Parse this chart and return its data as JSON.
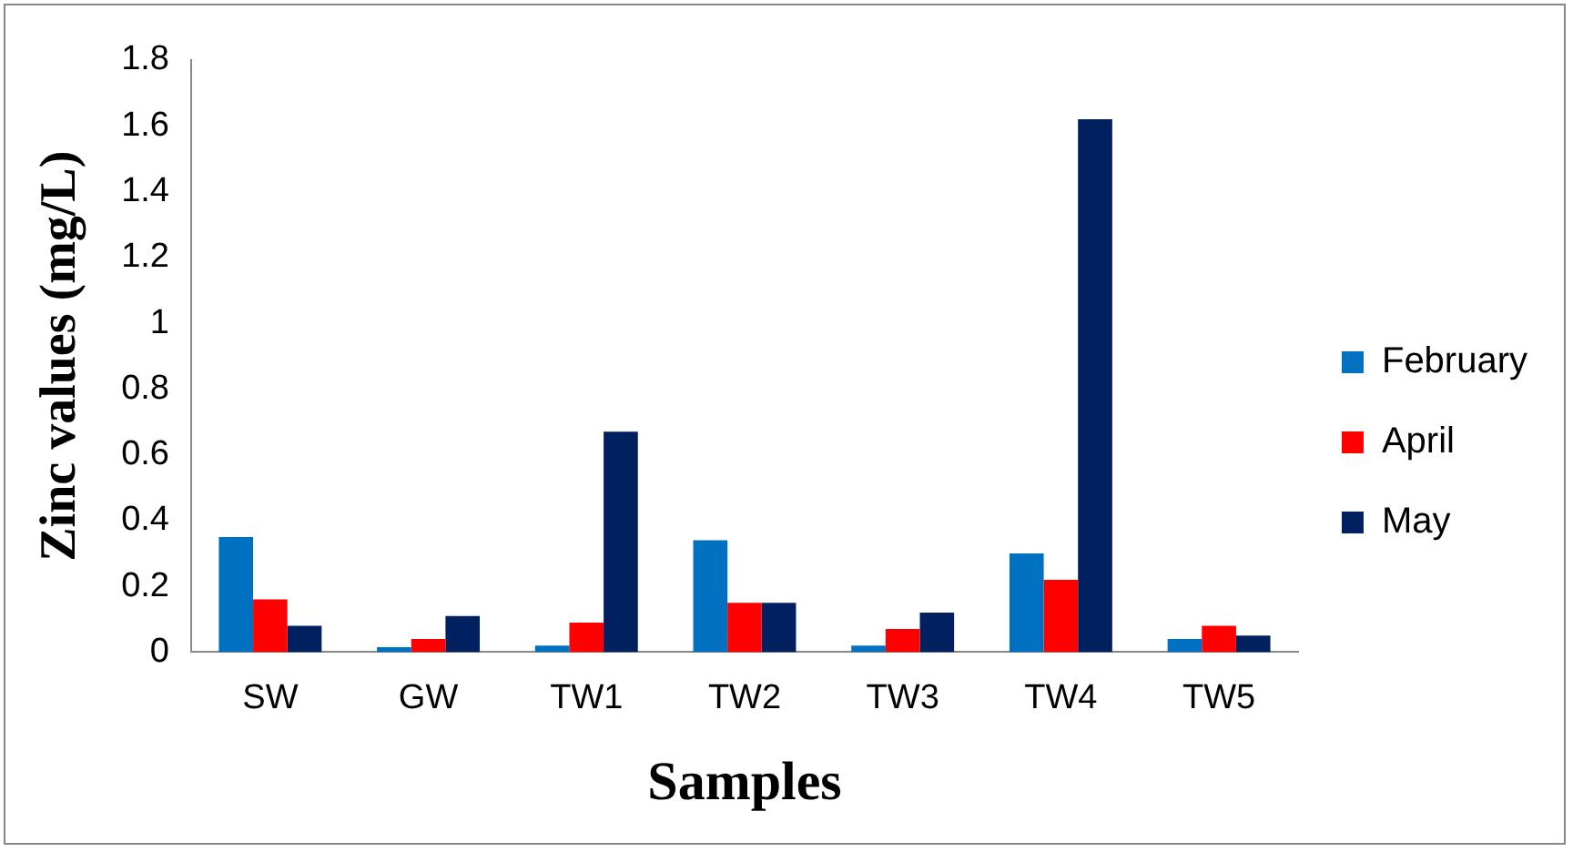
{
  "chart_data": {
    "type": "bar",
    "xlabel": "Samples",
    "ylabel": "Zinc values (mg/L)",
    "categories": [
      "SW",
      "GW",
      "TW1",
      "TW2",
      "TW3",
      "TW4",
      "TW5"
    ],
    "series": [
      {
        "name": "February",
        "color": "#0070c0",
        "values": [
          0.35,
          0.015,
          0.02,
          0.34,
          0.02,
          0.3,
          0.04
        ]
      },
      {
        "name": "April",
        "color": "#ff0000",
        "values": [
          0.16,
          0.04,
          0.09,
          0.15,
          0.07,
          0.22,
          0.08
        ]
      },
      {
        "name": "May",
        "color": "#002060",
        "values": [
          0.08,
          0.11,
          0.67,
          0.15,
          0.12,
          1.62,
          0.05
        ]
      }
    ],
    "ylim": [
      0,
      1.8
    ],
    "yticks": [
      0,
      0.2,
      0.4,
      0.6,
      0.8,
      1,
      1.2,
      1.4,
      1.6,
      1.8
    ],
    "grid": false,
    "legend": "right"
  }
}
